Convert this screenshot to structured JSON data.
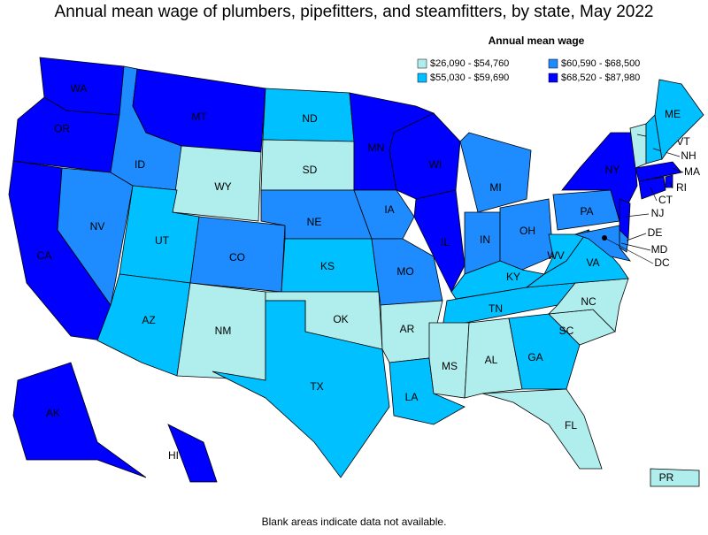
{
  "title": "Annual mean wage of plumbers, pipefitters, and steamfitters, by state, May 2022",
  "legend": {
    "title": "Annual mean wage",
    "items": [
      {
        "label": "$26,090 - $54,760",
        "color": "#b0eeee"
      },
      {
        "label": "$55,030 - $59,690",
        "color": "#00c0ff"
      },
      {
        "label": "$60,590 - $68,500",
        "color": "#1e8cff"
      },
      {
        "label": "$68,520 - $87,980",
        "color": "#0000ff"
      }
    ]
  },
  "states": [
    {
      "abbr": "WA",
      "color": "#0000ff"
    },
    {
      "abbr": "OR",
      "color": "#0000ff"
    },
    {
      "abbr": "CA",
      "color": "#0000ff"
    },
    {
      "abbr": "NV",
      "color": "#1e8cff"
    },
    {
      "abbr": "ID",
      "color": "#1e8cff"
    },
    {
      "abbr": "MT",
      "color": "#0000ff"
    },
    {
      "abbr": "WY",
      "color": "#b0eeee"
    },
    {
      "abbr": "UT",
      "color": "#00c0ff"
    },
    {
      "abbr": "CO",
      "color": "#1e8cff"
    },
    {
      "abbr": "AZ",
      "color": "#00c0ff"
    },
    {
      "abbr": "NM",
      "color": "#b0eeee"
    },
    {
      "abbr": "ND",
      "color": "#00c0ff"
    },
    {
      "abbr": "SD",
      "color": "#b0eeee"
    },
    {
      "abbr": "NE",
      "color": "#1e8cff"
    },
    {
      "abbr": "KS",
      "color": "#00c0ff"
    },
    {
      "abbr": "OK",
      "color": "#b0eeee"
    },
    {
      "abbr": "TX",
      "color": "#00c0ff"
    },
    {
      "abbr": "MN",
      "color": "#0000ff"
    },
    {
      "abbr": "IA",
      "color": "#1e8cff"
    },
    {
      "abbr": "MO",
      "color": "#1e8cff"
    },
    {
      "abbr": "AR",
      "color": "#b0eeee"
    },
    {
      "abbr": "LA",
      "color": "#00c0ff"
    },
    {
      "abbr": "WI",
      "color": "#0000ff"
    },
    {
      "abbr": "IL",
      "color": "#0000ff"
    },
    {
      "abbr": "MI",
      "color": "#1e8cff"
    },
    {
      "abbr": "IN",
      "color": "#1e8cff"
    },
    {
      "abbr": "OH",
      "color": "#1e8cff"
    },
    {
      "abbr": "KY",
      "color": "#00c0ff"
    },
    {
      "abbr": "TN",
      "color": "#00c0ff"
    },
    {
      "abbr": "MS",
      "color": "#b0eeee"
    },
    {
      "abbr": "AL",
      "color": "#b0eeee"
    },
    {
      "abbr": "GA",
      "color": "#00c0ff"
    },
    {
      "abbr": "FL",
      "color": "#b0eeee"
    },
    {
      "abbr": "SC",
      "color": "#b0eeee"
    },
    {
      "abbr": "NC",
      "color": "#b0eeee"
    },
    {
      "abbr": "VA",
      "color": "#00c0ff"
    },
    {
      "abbr": "WV",
      "color": "#00c0ff"
    },
    {
      "abbr": "PA",
      "color": "#1e8cff"
    },
    {
      "abbr": "NY",
      "color": "#0000ff"
    },
    {
      "abbr": "NJ",
      "color": "#0000ff"
    },
    {
      "abbr": "DE",
      "color": "#1e8cff"
    },
    {
      "abbr": "MD",
      "color": "#1e8cff"
    },
    {
      "abbr": "DC",
      "color": "#0000ff"
    },
    {
      "abbr": "VT",
      "color": "#b0eeee"
    },
    {
      "abbr": "NH",
      "color": "#00c0ff"
    },
    {
      "abbr": "ME",
      "color": "#00c0ff"
    },
    {
      "abbr": "MA",
      "color": "#0000ff"
    },
    {
      "abbr": "RI",
      "color": "#0000ff"
    },
    {
      "abbr": "CT",
      "color": "#0000ff"
    },
    {
      "abbr": "AK",
      "color": "#0000ff"
    },
    {
      "abbr": "HI",
      "color": "#0000ff"
    },
    {
      "abbr": "PR",
      "color": "#b0eeee"
    }
  ],
  "note": "Blank areas indicate data not available."
}
